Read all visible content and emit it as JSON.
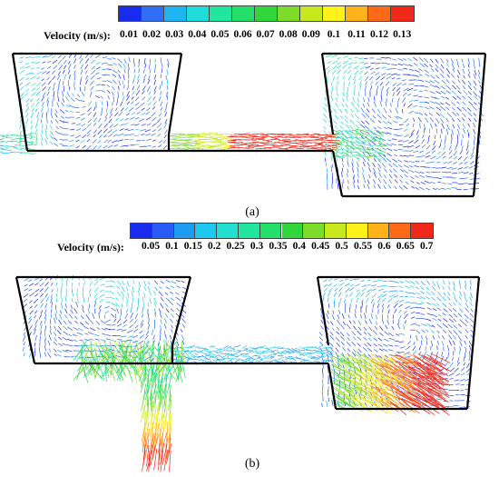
{
  "panels": [
    {
      "caption": "(a)",
      "legend": {
        "label": "Velocity (m/s):",
        "ticks": [
          "0.01",
          "0.02",
          "0.03",
          "0.04",
          "0.05",
          "0.06",
          "0.07",
          "0.08",
          "0.09",
          "0.1",
          "0.11",
          "0.12",
          "0.13"
        ],
        "colors": [
          "#1a2bf0",
          "#2f6ef5",
          "#1fb5f0",
          "#22dcd8",
          "#20e6a0",
          "#24e06a",
          "#31d63c",
          "#7ddc2a",
          "#c8e81e",
          "#fff21a",
          "#ffb21a",
          "#ff6a18",
          "#f0281a"
        ]
      }
    },
    {
      "caption": "(b)",
      "legend": {
        "label": "Velocity (m/s):",
        "ticks": [
          "0.05",
          "0.1",
          "0.15",
          "0.2",
          "0.25",
          "0.3",
          "0.35",
          "0.4",
          "0.45",
          "0.5",
          "0.55",
          "0.6",
          "0.65",
          "0.7"
        ],
        "colors": [
          "#1a2bf0",
          "#2a5cf5",
          "#1f9cf2",
          "#1fc8f0",
          "#22e0d0",
          "#20e6a0",
          "#24e06a",
          "#31d63c",
          "#7ddc2a",
          "#c8e81e",
          "#fff21a",
          "#ffb21a",
          "#ff6a18",
          "#f0281a"
        ]
      }
    }
  ]
}
